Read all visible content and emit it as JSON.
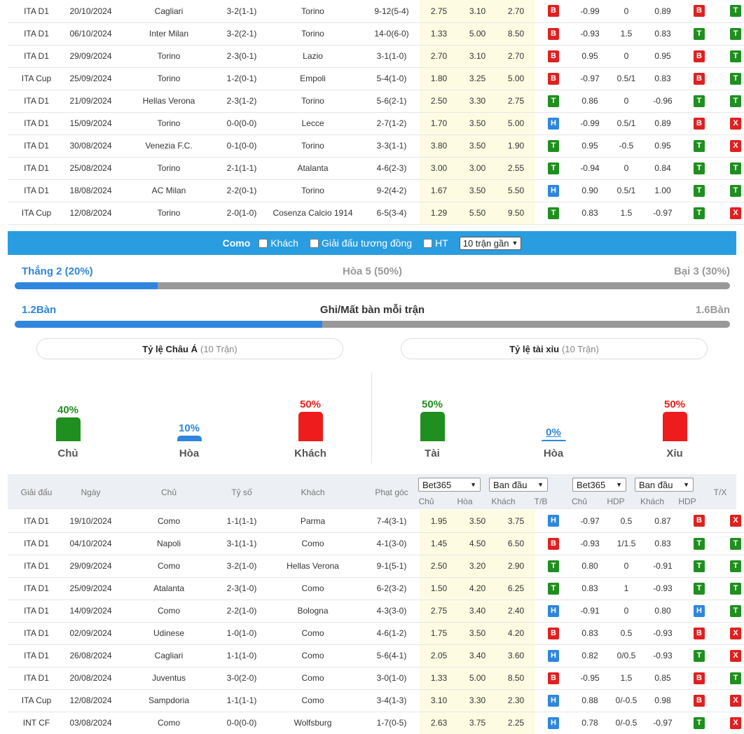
{
  "table1": [
    {
      "league": "ITA D1",
      "date": "20/10/2024",
      "home": "Cagliari",
      "score": "3-2(1-1)",
      "away": "Torino",
      "corner": "9-12(5-4)",
      "o1": "2.75",
      "o2": "3.10",
      "o3": "2.70",
      "r1": "B",
      "h1": "-0.99",
      "h2": "0",
      "h3": "0.89",
      "r2": "B",
      "r3": "T",
      "hl": "away"
    },
    {
      "league": "ITA D1",
      "date": "06/10/2024",
      "home": "Inter Milan",
      "score": "3-2(2-1)",
      "away": "Torino",
      "corner": "14-0(6-0)",
      "o1": "1.33",
      "o2": "5.00",
      "o3": "8.50",
      "r1": "B",
      "h1": "-0.93",
      "h2": "1.5",
      "h3": "0.83",
      "r2": "T",
      "r3": "T",
      "hl": "away"
    },
    {
      "league": "ITA D1",
      "date": "29/09/2024",
      "home": "Torino",
      "score": "2-3(0-1)",
      "away": "Lazio",
      "corner": "3-1(1-0)",
      "o1": "2.70",
      "o2": "3.10",
      "o3": "2.70",
      "r1": "B",
      "h1": "0.95",
      "h2": "0",
      "h3": "0.95",
      "r2": "B",
      "r3": "T",
      "hl": "home"
    },
    {
      "league": "ITA Cup",
      "date": "25/09/2024",
      "home": "Torino",
      "score": "1-2(0-1)",
      "away": "Empoli",
      "corner": "5-4(1-0)",
      "o1": "1.80",
      "o2": "3.25",
      "o3": "5.00",
      "r1": "B",
      "h1": "-0.97",
      "h2": "0.5/1",
      "h3": "0.83",
      "r2": "B",
      "r3": "T",
      "hl": "home"
    },
    {
      "league": "ITA D1",
      "date": "21/09/2024",
      "home": "Hellas Verona",
      "score": "2-3(1-2)",
      "away": "Torino",
      "corner": "5-6(2-1)",
      "o1": "2.50",
      "o2": "3.30",
      "o3": "2.75",
      "r1": "T",
      "h1": "0.86",
      "h2": "0",
      "h3": "-0.96",
      "r2": "T",
      "r3": "T",
      "hl": "away"
    },
    {
      "league": "ITA D1",
      "date": "15/09/2024",
      "home": "Torino",
      "score": "0-0(0-0)",
      "away": "Lecce",
      "corner": "2-7(1-2)",
      "o1": "1.70",
      "o2": "3.50",
      "o3": "5.00",
      "r1": "H",
      "h1": "-0.99",
      "h2": "0.5/1",
      "h3": "0.89",
      "r2": "B",
      "r3": "X",
      "hl": "home"
    },
    {
      "league": "ITA D1",
      "date": "30/08/2024",
      "home": "Venezia F.C.",
      "score": "0-1(0-0)",
      "away": "Torino",
      "corner": "3-3(1-1)",
      "o1": "3.80",
      "o2": "3.50",
      "o3": "1.90",
      "r1": "T",
      "h1": "0.95",
      "h2": "-0.5",
      "h3": "0.95",
      "r2": "T",
      "r3": "X",
      "hl": "away"
    },
    {
      "league": "ITA D1",
      "date": "25/08/2024",
      "home": "Torino",
      "score": "2-1(1-1)",
      "away": "Atalanta",
      "corner": "4-6(2-3)",
      "o1": "3.00",
      "o2": "3.00",
      "o3": "2.55",
      "r1": "T",
      "h1": "-0.94",
      "h2": "0",
      "h3": "0.84",
      "r2": "T",
      "r3": "T",
      "hl": "home"
    },
    {
      "league": "ITA D1",
      "date": "18/08/2024",
      "home": "AC Milan",
      "score": "2-2(0-1)",
      "away": "Torino",
      "corner": "9-2(4-2)",
      "o1": "1.67",
      "o2": "3.50",
      "o3": "5.50",
      "r1": "H",
      "h1": "0.90",
      "h2": "0.5/1",
      "h3": "1.00",
      "r2": "T",
      "r3": "T",
      "hl": "away"
    },
    {
      "league": "ITA Cup",
      "date": "12/08/2024",
      "home": "Torino",
      "score": "2-0(1-0)",
      "away": "Cosenza Calcio 1914",
      "corner": "6-5(3-4)",
      "o1": "1.29",
      "o2": "5.50",
      "o3": "9.50",
      "r1": "T",
      "h1": "0.83",
      "h2": "1.5",
      "h3": "-0.97",
      "r2": "T",
      "r3": "X",
      "hl": "home"
    }
  ],
  "filter": {
    "team": "Como",
    "opt1": "Khách",
    "opt2": "Giải đấu tương đồng",
    "opt3": "HT",
    "select": "10 trận gần"
  },
  "summary": {
    "win": "Thắng 2 (20%)",
    "draw": "Hòa 5 (50%)",
    "loss": "Bại 3 (30%)",
    "win_fraction": 0.2,
    "goals_left": "1.2Bàn",
    "goals_title": "Ghi/Mất bàn mỗi trận",
    "goals_right": "1.6Bàn",
    "goals_fraction": 0.43
  },
  "asian": {
    "title": "Tỷ lệ Châu Á",
    "sub": "(10 Trận)",
    "bars": [
      {
        "pct": "40%",
        "label": "Chủ",
        "value": 0.4,
        "color": "#1f8f1f"
      },
      {
        "pct": "10%",
        "label": "Hòa",
        "value": 0.1,
        "color": "#2e86de"
      },
      {
        "pct": "50%",
        "label": "Khách",
        "value": 0.5,
        "color": "#ee1c1c"
      }
    ]
  },
  "ou": {
    "title": "Tỷ lệ tài xỉu",
    "sub": "(10 Trận)",
    "bars": [
      {
        "pct": "50%",
        "label": "Tài",
        "value": 0.5,
        "color": "#1f8f1f"
      },
      {
        "pct": "0%",
        "label": "Hòa",
        "value": 0,
        "color": "#2e86de"
      },
      {
        "pct": "50%",
        "label": "Xỉu",
        "value": 0.5,
        "color": "#ee1c1c"
      }
    ]
  },
  "header": {
    "league": "Giải đấu",
    "date": "Ngày",
    "home": "Chủ",
    "score": "Tỷ số",
    "away": "Khách",
    "corner": "Phạt góc",
    "sel1": "Bet365",
    "sel2": "Ban đầu",
    "sel3": "Bet365",
    "sel4": "Ban đầu",
    "c1": "Chủ",
    "c2": "Hòa",
    "c3": "Khách",
    "c4": "T/B",
    "c5": "Chủ",
    "c6": "HDP",
    "c7": "Khách",
    "c8": "HDP",
    "c9": "T/X"
  },
  "table2": [
    {
      "league": "ITA D1",
      "date": "19/10/2024",
      "home": "Como",
      "score": "1-1(1-1)",
      "away": "Parma",
      "corner": "7-4(3-1)",
      "o1": "1.95",
      "o2": "3.50",
      "o3": "3.75",
      "r1": "H",
      "h1": "-0.97",
      "h2": "0.5",
      "h3": "0.87",
      "r2": "B",
      "r3": "X",
      "hl": "home"
    },
    {
      "league": "ITA D1",
      "date": "04/10/2024",
      "home": "Napoli",
      "score": "3-1(1-1)",
      "away": "Como",
      "corner": "4-1(3-0)",
      "o1": "1.45",
      "o2": "4.50",
      "o3": "6.50",
      "r1": "B",
      "h1": "-0.93",
      "h2": "1/1.5",
      "h3": "0.83",
      "r2": "T",
      "r3": "T",
      "hl": "away"
    },
    {
      "league": "ITA D1",
      "date": "29/09/2024",
      "home": "Como",
      "score": "3-2(1-0)",
      "away": "Hellas Verona",
      "corner": "9-1(5-1)",
      "o1": "2.50",
      "o2": "3.20",
      "o3": "2.90",
      "r1": "T",
      "h1": "0.80",
      "h2": "0",
      "h3": "-0.91",
      "r2": "T",
      "r3": "T",
      "hl": "home"
    },
    {
      "league": "ITA D1",
      "date": "25/09/2024",
      "home": "Atalanta",
      "score": "2-3(1-0)",
      "away": "Como",
      "corner": "6-2(3-2)",
      "o1": "1.50",
      "o2": "4.20",
      "o3": "6.25",
      "r1": "T",
      "h1": "0.83",
      "h2": "1",
      "h3": "-0.93",
      "r2": "T",
      "r3": "T",
      "hl": "away"
    },
    {
      "league": "ITA D1",
      "date": "14/09/2024",
      "home": "Como",
      "score": "2-2(1-0)",
      "away": "Bologna",
      "corner": "4-3(3-0)",
      "o1": "2.75",
      "o2": "3.40",
      "o3": "2.40",
      "r1": "H",
      "h1": "-0.91",
      "h2": "0",
      "h3": "0.80",
      "r2": "H",
      "r3": "T",
      "hl": "home"
    },
    {
      "league": "ITA D1",
      "date": "02/09/2024",
      "home": "Udinese",
      "score": "1-0(1-0)",
      "away": "Como",
      "corner": "4-6(1-2)",
      "o1": "1.75",
      "o2": "3.50",
      "o3": "4.20",
      "r1": "B",
      "h1": "0.83",
      "h2": "0.5",
      "h3": "-0.93",
      "r2": "B",
      "r3": "X",
      "hl": "away"
    },
    {
      "league": "ITA D1",
      "date": "26/08/2024",
      "home": "Cagliari",
      "score": "1-1(1-0)",
      "away": "Como",
      "corner": "5-6(4-1)",
      "o1": "2.05",
      "o2": "3.40",
      "o3": "3.60",
      "r1": "H",
      "h1": "0.82",
      "h2": "0/0.5",
      "h3": "-0.93",
      "r2": "T",
      "r3": "X",
      "hl": "away"
    },
    {
      "league": "ITA D1",
      "date": "20/08/2024",
      "home": "Juventus",
      "score": "3-0(2-0)",
      "away": "Como",
      "corner": "3-0(1-0)",
      "o1": "1.33",
      "o2": "5.00",
      "o3": "8.50",
      "r1": "B",
      "h1": "-0.95",
      "h2": "1.5",
      "h3": "0.85",
      "r2": "B",
      "r3": "T",
      "hl": "away"
    },
    {
      "league": "ITA Cup",
      "date": "12/08/2024",
      "home": "Sampdoria",
      "score": "1-1(1-1)",
      "away": "Como",
      "corner": "3-4(1-3)",
      "o1": "3.10",
      "o2": "3.30",
      "o3": "2.30",
      "r1": "H",
      "h1": "0.88",
      "h2": "0/-0.5",
      "h3": "0.98",
      "r2": "B",
      "r3": "X",
      "hl": "away"
    },
    {
      "league": "INT CF",
      "date": "03/08/2024",
      "home": "Como",
      "score": "0-0(0-0)",
      "away": "Wolfsburg",
      "corner": "1-7(0-5)",
      "o1": "2.63",
      "o2": "3.75",
      "o3": "2.25",
      "r1": "H",
      "h1": "0.78",
      "h2": "0/-0.5",
      "h3": "-0.97",
      "r2": "T",
      "r3": "X",
      "hl": "home"
    }
  ]
}
